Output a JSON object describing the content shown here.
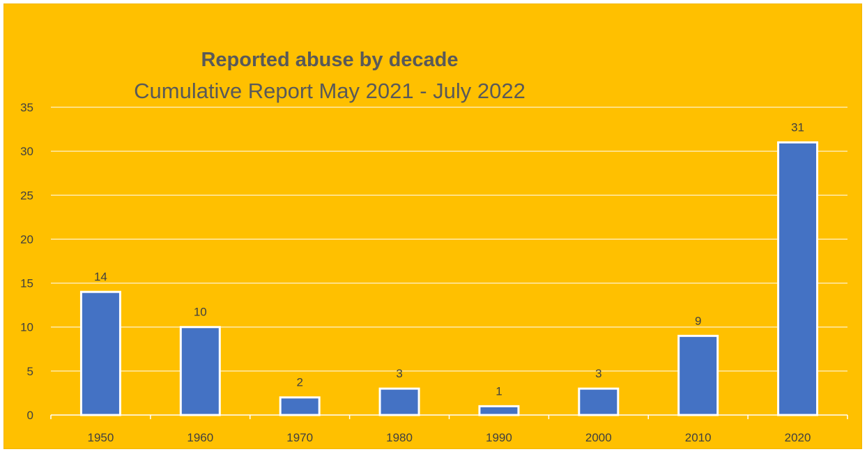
{
  "colors": {
    "background": "#FFC000",
    "bar_fill": "#4472C4",
    "bar_stroke": "#FFFFFF",
    "gridline": "#FFFFFF",
    "text": "#404040",
    "title_text": "#595959"
  },
  "chart_data": {
    "type": "bar",
    "title": "Reported abuse by decade",
    "subtitle": "Cumulative Report May 2021 - July 2022",
    "xlabel": "",
    "ylabel": "",
    "categories": [
      "1950",
      "1960",
      "1970",
      "1980",
      "1990",
      "2000",
      "2010",
      "2020"
    ],
    "values": [
      14,
      10,
      2,
      3,
      1,
      3,
      9,
      31
    ],
    "ylim": [
      0,
      35
    ],
    "yticks": [
      0,
      5,
      10,
      15,
      20,
      25,
      30,
      35
    ],
    "data_labels": true,
    "grid": true,
    "legend": false
  }
}
